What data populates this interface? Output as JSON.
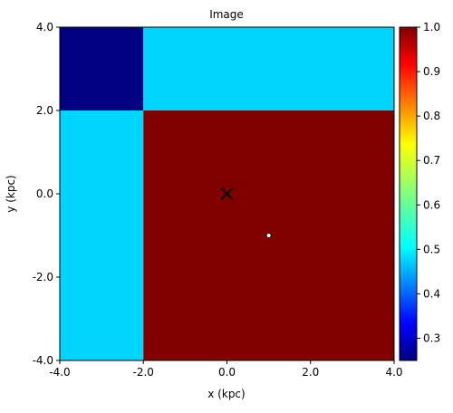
{
  "chart_data": {
    "type": "heatmap",
    "title": "Image",
    "xlabel": "x (kpc)",
    "ylabel": "y (kpc)",
    "xlim": [
      -4.0,
      4.0
    ],
    "ylim": [
      -4.0,
      4.0
    ],
    "x_ticks": [
      -4.0,
      -2.0,
      0.0,
      2.0,
      4.0
    ],
    "y_ticks": [
      -4.0,
      -2.0,
      0.0,
      2.0,
      4.0
    ],
    "x_tick_labels": [
      "-4.0",
      "-2.0",
      "0.0",
      "2.0",
      "4.0"
    ],
    "y_tick_labels": [
      "-4.0",
      "-2.0",
      "0.0",
      "2.0",
      "4.0"
    ],
    "grid": false,
    "colormap": "jet",
    "colorbar": {
      "vmin": 0.25,
      "vmax": 1.0,
      "ticks": [
        0.3,
        0.4,
        0.5,
        0.6,
        0.7,
        0.8,
        0.9,
        1.0
      ],
      "tick_labels": [
        "0.3",
        "0.4",
        "0.5",
        "0.6",
        "0.7",
        "0.8",
        "0.9",
        "1.0"
      ]
    },
    "cells": [
      {
        "x": [
          -4.0,
          -2.0
        ],
        "y": [
          2.0,
          4.0
        ],
        "value": 0.25
      },
      {
        "x": [
          -2.0,
          4.0
        ],
        "y": [
          2.0,
          4.0
        ],
        "value": 0.5
      },
      {
        "x": [
          -4.0,
          -2.0
        ],
        "y": [
          -4.0,
          2.0
        ],
        "value": 0.5
      },
      {
        "x": [
          -2.0,
          4.0
        ],
        "y": [
          -4.0,
          2.0
        ],
        "value": 1.0
      }
    ],
    "markers": [
      {
        "kind": "cross",
        "x": 0.0,
        "y": 0.0,
        "color": "#000000"
      },
      {
        "kind": "dot",
        "x": 1.0,
        "y": -1.0,
        "color": "#ffffff"
      }
    ]
  }
}
